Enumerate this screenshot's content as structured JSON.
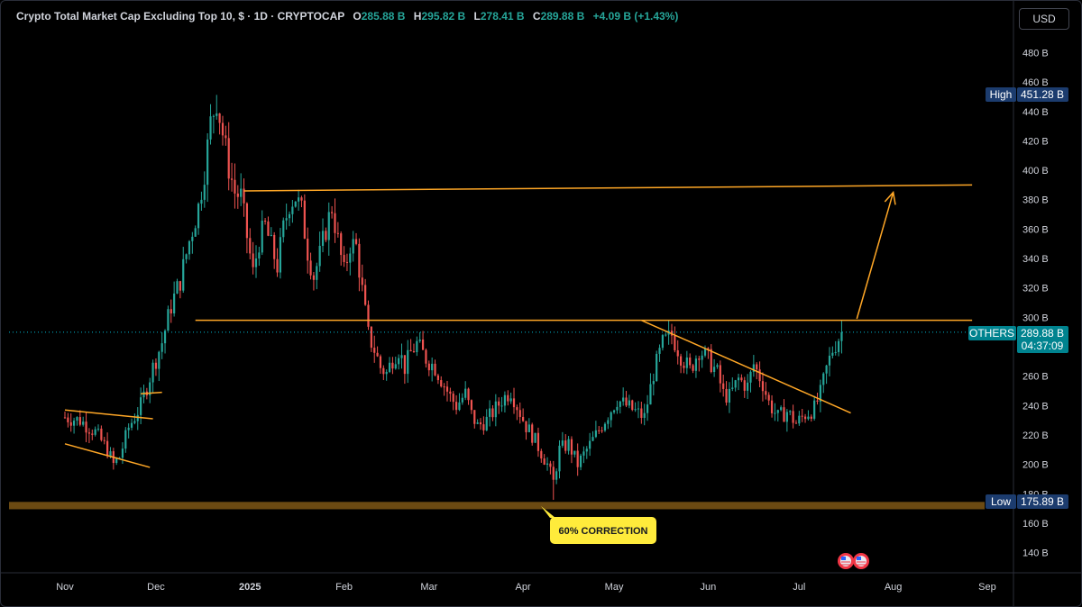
{
  "header": {
    "title": "Crypto Total Market Cap Excluding Top 10, $ · 1D · CRYPTOCAP",
    "open_label": "O",
    "open": "285.88 B",
    "high_label": "H",
    "high": "295.82 B",
    "low_label": "L",
    "low": "278.41 B",
    "close_label": "C",
    "close": "289.88 B",
    "change": "+4.09 B (+1.43%)"
  },
  "currency_button": "USD",
  "tags": {
    "high_label": "High",
    "high_value": "451.28 B",
    "last_label": "OTHERS",
    "last_value": "289.88 B",
    "countdown": "04:37:09",
    "low_label": "Low",
    "low_value": "175.89 B"
  },
  "annotation": {
    "text": "60% CORRECTION"
  },
  "colors": {
    "up": "#26a69a",
    "down": "#ef5350",
    "trendline": "#ffa726",
    "support_zone": "#6b4a12",
    "callout_bg": "#ffeb3b",
    "tag_blue": "#1c3c6e",
    "tag_teal": "#00838f"
  },
  "chart_data": {
    "type": "candlestick",
    "title": "Crypto Total Market Cap Excluding Top 10",
    "ylim": [
      125,
      500
    ],
    "y_ticks": [
      140,
      160,
      180,
      200,
      220,
      240,
      260,
      280,
      300,
      320,
      340,
      360,
      380,
      400,
      420,
      440,
      460,
      480
    ],
    "y_tick_labels": [
      "140 B",
      "160 B",
      "180 B",
      "200 B",
      "220 B",
      "240 B",
      "260 B",
      "280 B",
      "300 B",
      "320 B",
      "340 B",
      "360 B",
      "380 B",
      "400 B",
      "420 B",
      "440 B",
      "460 B",
      "480 B"
    ],
    "x_ticks": [
      {
        "label": "Nov",
        "day": 31,
        "bold": false
      },
      {
        "label": "Dec",
        "day": 61,
        "bold": false
      },
      {
        "label": "2025",
        "day": 92,
        "bold": true
      },
      {
        "label": "Feb",
        "day": 123,
        "bold": false
      },
      {
        "label": "Mar",
        "day": 151,
        "bold": false
      },
      {
        "label": "Apr",
        "day": 182,
        "bold": false
      },
      {
        "label": "May",
        "day": 212,
        "bold": false
      },
      {
        "label": "Jun",
        "day": 243,
        "bold": false
      },
      {
        "label": "Jul",
        "day": 273,
        "bold": false
      },
      {
        "label": "Aug",
        "day": 304,
        "bold": false
      },
      {
        "label": "Sep",
        "day": 335,
        "bold": false
      }
    ],
    "x_day_range": [
      31,
      335
    ],
    "first_candle_day": 31,
    "last_candle_day": 287,
    "close_anchors": [
      [
        31,
        232
      ],
      [
        36,
        230
      ],
      [
        41,
        222
      ],
      [
        45,
        210
      ],
      [
        47,
        200
      ],
      [
        49,
        205
      ],
      [
        52,
        225
      ],
      [
        56,
        240
      ],
      [
        60,
        266
      ],
      [
        63,
        283
      ],
      [
        66,
        308
      ],
      [
        69,
        325
      ],
      [
        72,
        352
      ],
      [
        75,
        375
      ],
      [
        77,
        400
      ],
      [
        79,
        432
      ],
      [
        81,
        448
      ],
      [
        83,
        425
      ],
      [
        85,
        402
      ],
      [
        87,
        385
      ],
      [
        89,
        382
      ],
      [
        91,
        355
      ],
      [
        93,
        330
      ],
      [
        95,
        352
      ],
      [
        97,
        362
      ],
      [
        99,
        348
      ],
      [
        101,
        335
      ],
      [
        103,
        360
      ],
      [
        105,
        378
      ],
      [
        107,
        382
      ],
      [
        109,
        372
      ],
      [
        111,
        345
      ],
      [
        113,
        328
      ],
      [
        115,
        342
      ],
      [
        117,
        360
      ],
      [
        119,
        375
      ],
      [
        121,
        352
      ],
      [
        123,
        330
      ],
      [
        125,
        350
      ],
      [
        127,
        348
      ],
      [
        129,
        318
      ],
      [
        131,
        288
      ],
      [
        133,
        278
      ],
      [
        135,
        266
      ],
      [
        137,
        262
      ],
      [
        139,
        272
      ],
      [
        141,
        278
      ],
      [
        143,
        266
      ],
      [
        145,
        276
      ],
      [
        147,
        282
      ],
      [
        150,
        272
      ],
      [
        153,
        266
      ],
      [
        155,
        258
      ],
      [
        158,
        246
      ],
      [
        160,
        240
      ],
      [
        163,
        248
      ],
      [
        165,
        234
      ],
      [
        167,
        226
      ],
      [
        170,
        230
      ],
      [
        173,
        238
      ],
      [
        175,
        244
      ],
      [
        178,
        250
      ],
      [
        180,
        240
      ],
      [
        183,
        226
      ],
      [
        185,
        220
      ],
      [
        188,
        208
      ],
      [
        190,
        200
      ],
      [
        192,
        188
      ],
      [
        194,
        210
      ],
      [
        197,
        214
      ],
      [
        200,
        200
      ],
      [
        203,
        210
      ],
      [
        206,
        220
      ],
      [
        210,
        234
      ],
      [
        213,
        244
      ],
      [
        216,
        240
      ],
      [
        219,
        236
      ],
      [
        222,
        232
      ],
      [
        225,
        262
      ],
      [
        228,
        282
      ],
      [
        231,
        288
      ],
      [
        234,
        274
      ],
      [
        237,
        264
      ],
      [
        240,
        278
      ],
      [
        243,
        272
      ],
      [
        246,
        262
      ],
      [
        248,
        248
      ],
      [
        250,
        246
      ],
      [
        253,
        258
      ],
      [
        256,
        253
      ],
      [
        258,
        268
      ],
      [
        261,
        255
      ],
      [
        263,
        242
      ],
      [
        266,
        232
      ],
      [
        269,
        236
      ],
      [
        272,
        228
      ],
      [
        275,
        234
      ],
      [
        278,
        238
      ],
      [
        280,
        248
      ],
      [
        282,
        265
      ],
      [
        284,
        278
      ],
      [
        286,
        286
      ],
      [
        287,
        290
      ]
    ],
    "reference": {
      "high": 451.28,
      "low": 175.89,
      "last": 289.88,
      "resistance_level": 298,
      "upper_channel_level": 388,
      "support_zone": [
        169.5,
        174.5
      ]
    },
    "trendlines": [
      {
        "name": "Upper range",
        "from": [
          90,
          386
        ],
        "to": [
          330,
          390
        ]
      },
      {
        "name": "Breakout resistance",
        "from": [
          74,
          298
        ],
        "to": [
          330,
          298
        ]
      },
      {
        "name": "Descending trendline",
        "from": [
          221,
          298
        ],
        "to": [
          290,
          235
        ]
      },
      {
        "name": "Upper falling channel",
        "from": [
          31,
          237
        ],
        "to": [
          60,
          231
        ]
      },
      {
        "name": "Lower falling channel",
        "from": [
          31,
          214
        ],
        "to": [
          59,
          198
        ]
      },
      {
        "name": "Channel breakout marker",
        "from": [
          56,
          248
        ],
        "to": [
          63,
          249
        ]
      },
      {
        "name": "Target projection",
        "from": [
          292,
          299
        ],
        "to": [
          304,
          385
        ]
      }
    ]
  }
}
